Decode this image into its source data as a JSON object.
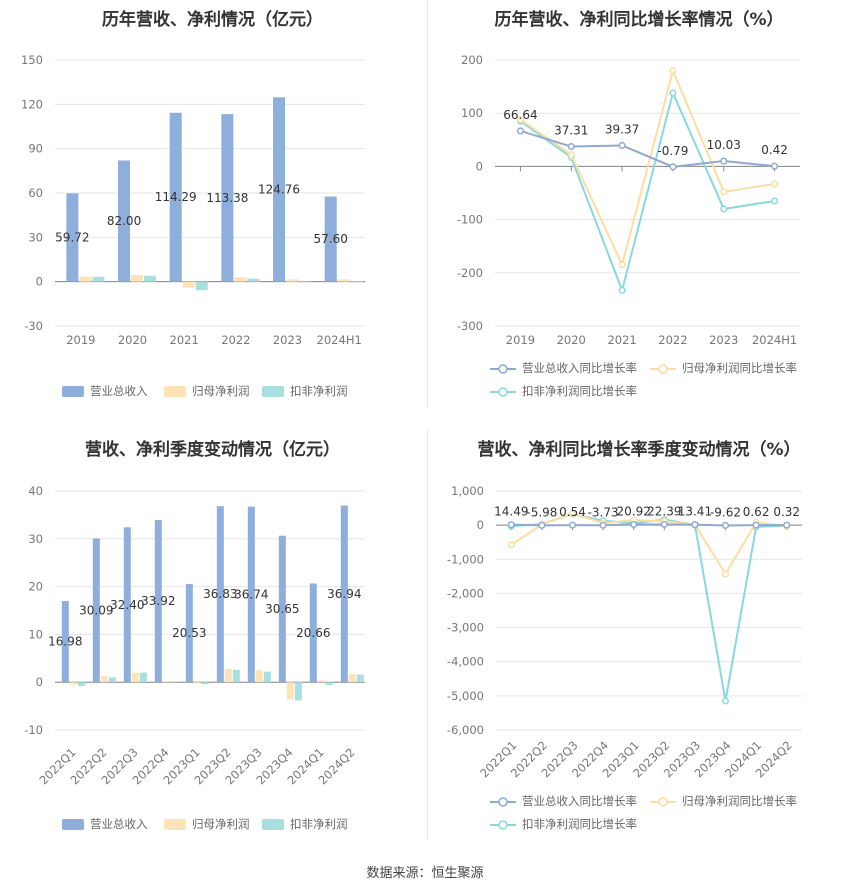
{
  "source": "数据来源：恒生聚源",
  "colors": {
    "revenue": "#8eaedb",
    "parent": "#fde3b5",
    "deducted": "#a8dfe1",
    "rev_line": "#8fa9d3",
    "par_line": "#fddda0",
    "ded_line": "#88d9dd"
  },
  "chart_data": [
    {
      "id": "annual_amount",
      "type": "bar",
      "title": "历年营收、净利情况（亿元）",
      "categories": [
        "2019",
        "2020",
        "2021",
        "2022",
        "2023",
        "2024H1"
      ],
      "ylim": [
        -30,
        150
      ],
      "yticks": [
        -30,
        0,
        30,
        60,
        90,
        120,
        150
      ],
      "grid": true,
      "legend_position": "bottom",
      "series": [
        {
          "name": "营业总收入",
          "values": [
            59.72,
            82.0,
            114.29,
            113.38,
            124.76,
            57.6
          ],
          "labels": [
            "59.72",
            "82.00",
            "114.29",
            "113.38",
            "124.76",
            "57.60"
          ]
        },
        {
          "name": "归母净利润",
          "values": [
            3.5,
            4.5,
            -4.0,
            3.0,
            1.6,
            1.6
          ]
        },
        {
          "name": "扣非净利润",
          "values": [
            3.3,
            4.0,
            -5.8,
            2.0,
            0.5,
            0.5
          ]
        }
      ]
    },
    {
      "id": "annual_growth",
      "type": "line",
      "title": "历年营收、净利同比增长率情况（%）",
      "categories": [
        "2019",
        "2020",
        "2021",
        "2022",
        "2023",
        "2024H1"
      ],
      "ylim": [
        -300,
        200
      ],
      "yticks": [
        -300,
        -200,
        -100,
        0,
        100,
        200
      ],
      "grid": true,
      "legend_position": "bottom",
      "series": [
        {
          "name": "营业总收入同比增长率",
          "values": [
            66.64,
            37.31,
            39.37,
            -0.79,
            10.03,
            0.42
          ],
          "labels": [
            "66.64",
            "37.31",
            "39.37",
            "-0.79",
            "10.03",
            "0.42"
          ]
        },
        {
          "name": "归母净利润同比增长率",
          "values": [
            88,
            22,
            -185,
            180,
            -48,
            -33
          ]
        },
        {
          "name": "扣非净利润同比增长率",
          "values": [
            85,
            17,
            -233,
            138,
            -80,
            -65
          ]
        }
      ]
    },
    {
      "id": "quarterly_amount",
      "type": "bar",
      "title": "营收、净利季度变动情况（亿元）",
      "categories": [
        "2022Q1",
        "2022Q2",
        "2022Q3",
        "2022Q4",
        "2023Q1",
        "2023Q2",
        "2023Q3",
        "2023Q4",
        "2024Q1",
        "2024Q2"
      ],
      "ylim": [
        -10,
        40
      ],
      "yticks": [
        -10,
        0,
        10,
        20,
        30,
        40
      ],
      "grid": true,
      "legend_position": "bottom",
      "series": [
        {
          "name": "营业总收入",
          "values": [
            16.98,
            30.09,
            32.4,
            33.92,
            20.53,
            36.83,
            36.74,
            30.65,
            20.66,
            36.94
          ],
          "labels": [
            "16.98",
            "30.09",
            "32.40",
            "33.92",
            "20.53",
            "36.83",
            "36.74",
            "30.65",
            "20.66",
            "36.94"
          ]
        },
        {
          "name": "归母净利润",
          "values": [
            -0.5,
            1.3,
            2.0,
            0.2,
            -0.2,
            2.8,
            2.5,
            -3.6,
            0.4,
            1.7
          ]
        },
        {
          "name": "扣非净利润",
          "values": [
            -0.8,
            1.0,
            2.0,
            0.1,
            -0.4,
            2.6,
            2.2,
            -3.8,
            -0.6,
            1.6
          ]
        }
      ]
    },
    {
      "id": "quarterly_growth",
      "type": "line",
      "title": "营收、净利同比增长率季度变动情况（%）",
      "categories": [
        "2022Q1",
        "2022Q2",
        "2022Q3",
        "2022Q4",
        "2023Q1",
        "2023Q2",
        "2023Q3",
        "2023Q4",
        "2024Q1",
        "2024Q2"
      ],
      "ylim": [
        -6000,
        1000
      ],
      "yticks": [
        -6000,
        -5000,
        -4000,
        -3000,
        -2000,
        -1000,
        0,
        1000
      ],
      "ytick_labels": [
        "-6,000",
        "-5,000",
        "-4,000",
        "-3,000",
        "-2,000",
        "-1,000",
        "0",
        "1,000"
      ],
      "grid": true,
      "legend_position": "bottom",
      "series": [
        {
          "name": "营业总收入同比增长率",
          "values": [
            14.49,
            -5.98,
            0.54,
            -3.73,
            20.92,
            22.39,
            13.41,
            -9.62,
            0.62,
            0.32
          ],
          "labels": [
            "14.49",
            "-5.98",
            "0.54",
            "-3.73",
            "20.92",
            "22.39",
            "13.41",
            "-9.62",
            "0.62",
            "0.32"
          ]
        },
        {
          "name": "归母净利润同比增长率",
          "values": [
            -580,
            20,
            340,
            60,
            150,
            110,
            20,
            -1430,
            80,
            -30
          ]
        },
        {
          "name": "扣非净利润同比增长率",
          "values": [
            -30,
            30,
            330,
            130,
            60,
            160,
            10,
            -5150,
            -50,
            -20
          ]
        }
      ]
    }
  ]
}
